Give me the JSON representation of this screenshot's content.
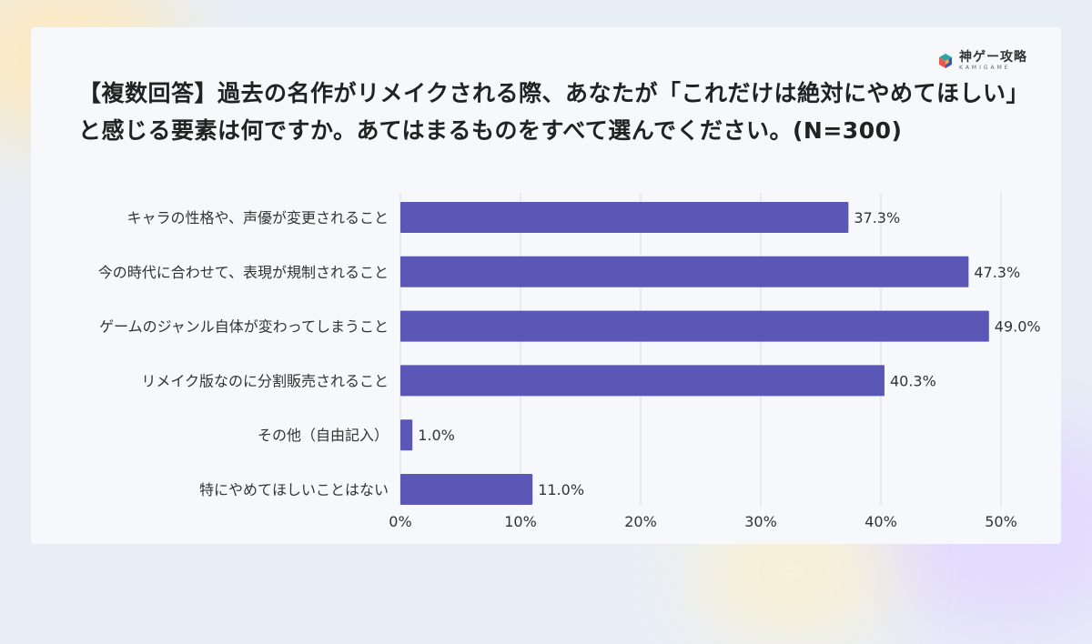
{
  "logo": {
    "name": "神ゲー攻略",
    "sub": "KAMIGAME",
    "icon": "cube-icon",
    "colors": [
      "#2aa8a0",
      "#e85a4f",
      "#f4b83a",
      "#3b5ba9"
    ]
  },
  "chart_data": {
    "type": "bar",
    "orientation": "horizontal",
    "title": "【複数回答】過去の名作がリメイクされる際、あなたが「これだけは絶対にやめてほしい」と感じる要素は何ですか。あてはまるものをすべて選んでください。(N=300)",
    "categories": [
      "キャラの性格や、声優が変更されること",
      "今の時代に合わせて、表現が規制されること",
      "ゲームのジャンル自体が変わってしまうこと",
      "リメイク版なのに分割販売されること",
      "その他（自由記入）",
      "特にやめてほしいことはない"
    ],
    "values": [
      37.3,
      47.3,
      49.0,
      40.3,
      1.0,
      11.0
    ],
    "value_labels": [
      "37.3%",
      "47.3%",
      "49.0%",
      "40.3%",
      "1.0%",
      "11.0%"
    ],
    "xlim": [
      0,
      50
    ],
    "xticks": [
      0,
      10,
      20,
      30,
      40,
      50
    ],
    "xtick_labels": [
      "0%",
      "10%",
      "20%",
      "30%",
      "40%",
      "50%"
    ],
    "bar_color": "#5b57b7",
    "grid": true
  }
}
